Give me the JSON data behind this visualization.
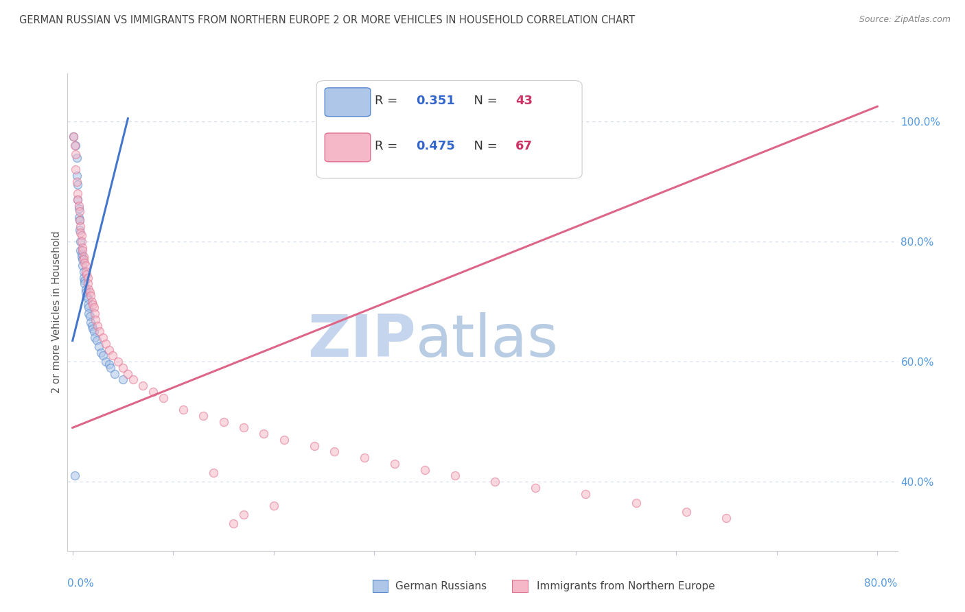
{
  "title": "GERMAN RUSSIAN VS IMMIGRANTS FROM NORTHERN EUROPE 2 OR MORE VEHICLES IN HOUSEHOLD CORRELATION CHART",
  "source": "Source: ZipAtlas.com",
  "ylabel": "2 or more Vehicles in Household",
  "watermark_zip": "ZIP",
  "watermark_atlas": "atlas",
  "blue_label": "German Russians",
  "pink_label": "Immigrants from Northern Europe",
  "blue_R": 0.351,
  "blue_N": 43,
  "pink_R": 0.475,
  "pink_N": 67,
  "xlim": [
    -0.005,
    0.82
  ],
  "ylim": [
    0.285,
    1.08
  ],
  "right_yticks": [
    0.4,
    0.6,
    0.8,
    1.0
  ],
  "right_yticklabels": [
    "40.0%",
    "60.0%",
    "80.0%",
    "100.0%"
  ],
  "blue_x": [
    0.001,
    0.003,
    0.004,
    0.004,
    0.005,
    0.005,
    0.006,
    0.006,
    0.007,
    0.007,
    0.008,
    0.008,
    0.009,
    0.009,
    0.01,
    0.01,
    0.011,
    0.011,
    0.012,
    0.012,
    0.013,
    0.013,
    0.014,
    0.015,
    0.015,
    0.016,
    0.016,
    0.017,
    0.018,
    0.019,
    0.02,
    0.021,
    0.022,
    0.024,
    0.026,
    0.028,
    0.03,
    0.033,
    0.036,
    0.038,
    0.042,
    0.05,
    0.002
  ],
  "blue_y": [
    0.975,
    0.96,
    0.94,
    0.91,
    0.895,
    0.87,
    0.855,
    0.84,
    0.835,
    0.82,
    0.8,
    0.785,
    0.78,
    0.775,
    0.77,
    0.76,
    0.75,
    0.74,
    0.735,
    0.73,
    0.72,
    0.715,
    0.71,
    0.705,
    0.695,
    0.69,
    0.68,
    0.675,
    0.665,
    0.66,
    0.655,
    0.65,
    0.64,
    0.635,
    0.625,
    0.615,
    0.61,
    0.6,
    0.595,
    0.59,
    0.58,
    0.57,
    0.41
  ],
  "pink_x": [
    0.001,
    0.002,
    0.003,
    0.003,
    0.004,
    0.005,
    0.005,
    0.006,
    0.007,
    0.007,
    0.008,
    0.008,
    0.009,
    0.009,
    0.01,
    0.01,
    0.011,
    0.011,
    0.012,
    0.013,
    0.013,
    0.014,
    0.015,
    0.015,
    0.016,
    0.017,
    0.018,
    0.019,
    0.02,
    0.021,
    0.022,
    0.023,
    0.025,
    0.027,
    0.03,
    0.033,
    0.036,
    0.04,
    0.045,
    0.05,
    0.055,
    0.06,
    0.07,
    0.08,
    0.09,
    0.11,
    0.13,
    0.15,
    0.17,
    0.19,
    0.21,
    0.24,
    0.26,
    0.29,
    0.32,
    0.35,
    0.38,
    0.42,
    0.46,
    0.51,
    0.56,
    0.61,
    0.65,
    0.14,
    0.17,
    0.2,
    0.16
  ],
  "pink_y": [
    0.975,
    0.96,
    0.945,
    0.92,
    0.9,
    0.88,
    0.87,
    0.86,
    0.85,
    0.835,
    0.825,
    0.815,
    0.81,
    0.8,
    0.79,
    0.785,
    0.775,
    0.77,
    0.765,
    0.76,
    0.75,
    0.745,
    0.74,
    0.73,
    0.72,
    0.715,
    0.71,
    0.7,
    0.695,
    0.69,
    0.68,
    0.67,
    0.66,
    0.65,
    0.64,
    0.63,
    0.62,
    0.61,
    0.6,
    0.59,
    0.58,
    0.57,
    0.56,
    0.55,
    0.54,
    0.52,
    0.51,
    0.5,
    0.49,
    0.48,
    0.47,
    0.46,
    0.45,
    0.44,
    0.43,
    0.42,
    0.41,
    0.4,
    0.39,
    0.38,
    0.365,
    0.35,
    0.34,
    0.415,
    0.345,
    0.36,
    0.33
  ],
  "blue_line_x": [
    0.0,
    0.055
  ],
  "blue_line_y": [
    0.635,
    1.005
  ],
  "pink_line_x": [
    0.0,
    0.8
  ],
  "pink_line_y": [
    0.49,
    1.025
  ],
  "blue_fill_color": "#aec6e8",
  "blue_edge_color": "#5588cc",
  "pink_fill_color": "#f5b8c8",
  "pink_edge_color": "#e07090",
  "blue_line_color": "#4477cc",
  "pink_line_color": "#dd6688",
  "grid_color": "#d0dae8",
  "watermark_zip_color": "#c5d5ed",
  "watermark_atlas_color": "#b8cce4",
  "bg_color": "#ffffff",
  "title_color": "#444444",
  "source_color": "#888888",
  "axis_label_color": "#555555",
  "right_axis_color": "#5599dd",
  "scatter_size": 75,
  "scatter_alpha": 0.55,
  "scatter_linewidth": 1.0,
  "legend_R_color": "#3366cc",
  "legend_N_color": "#cc3366"
}
